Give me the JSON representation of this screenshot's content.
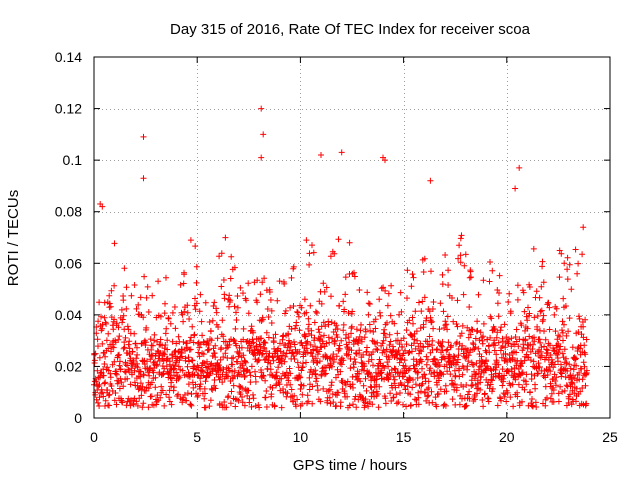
{
  "chart_data": {
    "type": "scatter",
    "title": "Day 315 of 2016, Rate Of TEC Index for receiver scoa",
    "xlabel": "GPS time / hours",
    "ylabel": "ROTI / TECUs",
    "xlim": [
      0,
      25
    ],
    "ylim": [
      0,
      0.14
    ],
    "xticks": [
      0,
      5,
      10,
      15,
      20,
      25
    ],
    "yticks": [
      0,
      0.02,
      0.04,
      0.06,
      0.08,
      0.1,
      0.12,
      0.14
    ],
    "xtick_labels": [
      "0",
      "5",
      "10",
      "15",
      "20",
      "25"
    ],
    "ytick_labels": [
      "0",
      "0.02",
      "0.04",
      "0.06",
      "0.08",
      "0.1",
      "0.12",
      "0.14"
    ],
    "grid": true,
    "marker": "+",
    "color": "#ff0000",
    "series": [
      {
        "name": "ROTI",
        "x_range": [
          0,
          23.9
        ],
        "baseline_range": [
          0.004,
          0.03
        ],
        "notable_points": [
          {
            "x": 0.3,
            "y": 0.083
          },
          {
            "x": 2.4,
            "y": 0.109
          },
          {
            "x": 2.4,
            "y": 0.093
          },
          {
            "x": 8.1,
            "y": 0.12
          },
          {
            "x": 8.2,
            "y": 0.11
          },
          {
            "x": 8.1,
            "y": 0.101
          },
          {
            "x": 11.0,
            "y": 0.102
          },
          {
            "x": 12.0,
            "y": 0.103
          },
          {
            "x": 14.0,
            "y": 0.101
          },
          {
            "x": 14.1,
            "y": 0.1
          },
          {
            "x": 20.6,
            "y": 0.097
          },
          {
            "x": 20.4,
            "y": 0.089
          },
          {
            "x": 16.3,
            "y": 0.092
          },
          {
            "x": 23.7,
            "y": 0.074
          },
          {
            "x": 0.4,
            "y": 0.082
          }
        ]
      }
    ]
  }
}
